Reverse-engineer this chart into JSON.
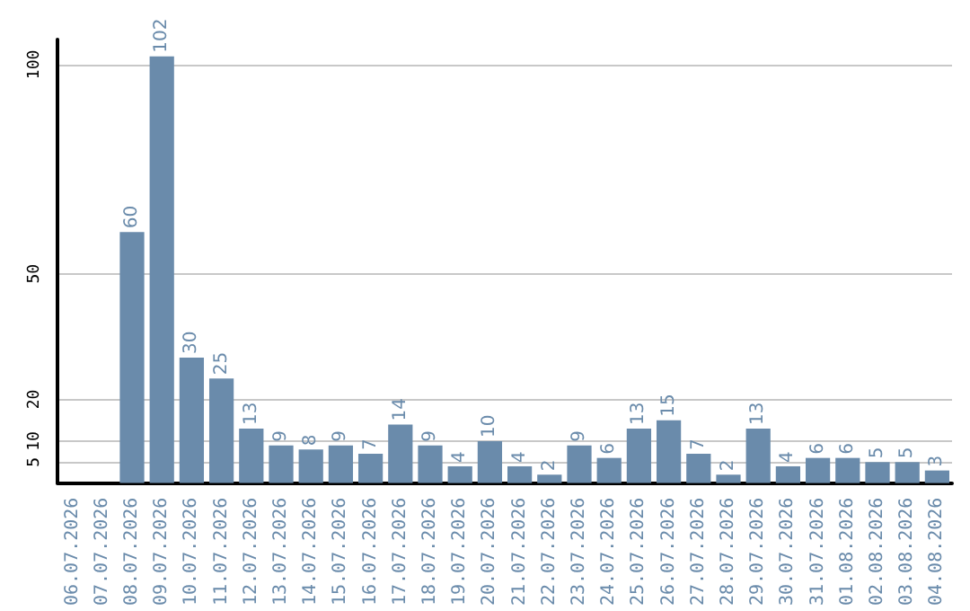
{
  "chart_data": {
    "type": "bar",
    "categories": [
      "06.07.2026",
      "07.07.2026",
      "08.07.2026",
      "09.07.2026",
      "10.07.2026",
      "11.07.2026",
      "12.07.2026",
      "13.07.2026",
      "14.07.2026",
      "15.07.2026",
      "16.07.2026",
      "17.07.2026",
      "18.07.2026",
      "19.07.2026",
      "20.07.2026",
      "21.07.2026",
      "22.07.2026",
      "23.07.2026",
      "24.07.2026",
      "25.07.2026",
      "26.07.2026",
      "27.07.2026",
      "28.07.2026",
      "29.07.2026",
      "30.07.2026",
      "31.07.2026",
      "01.08.2026",
      "02.08.2026",
      "03.08.2026",
      "04.08.2026"
    ],
    "values": [
      null,
      null,
      60,
      102,
      30,
      25,
      13,
      9,
      8,
      9,
      7,
      14,
      9,
      4,
      10,
      4,
      2,
      9,
      6,
      13,
      15,
      7,
      2,
      13,
      4,
      6,
      6,
      5,
      5,
      3
    ],
    "color": "#6a8bab",
    "ylim": [
      0,
      106
    ],
    "yticks": [
      5,
      10,
      20,
      50,
      100
    ],
    "grid": "y",
    "data_labels": true
  }
}
